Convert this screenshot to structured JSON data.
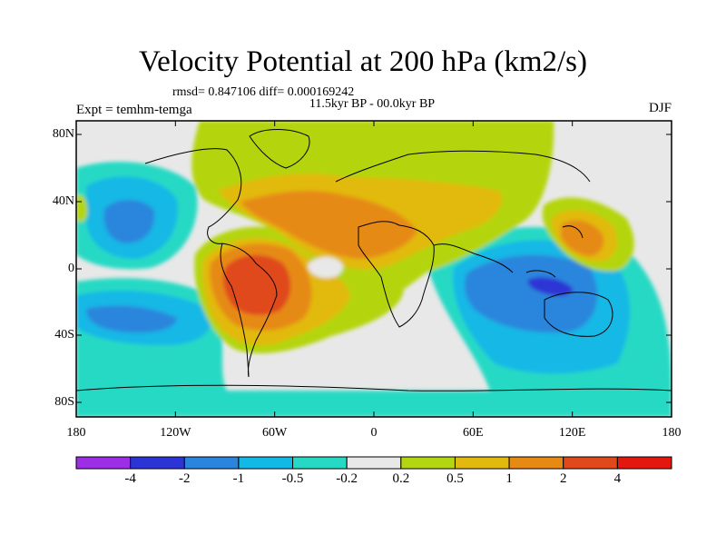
{
  "title": "Velocity Potential at 200 hPa (km2/s)",
  "stats": "rmsd= 0.847106 diff= 0.000169242",
  "period": "11.5kyr BP - 00.0kyr BP",
  "experiment": "Expt = temhm-temga",
  "season": "DJF",
  "lat_labels": [
    "80N",
    "40N",
    "0",
    "40S",
    "80S"
  ],
  "lon_labels": [
    "180",
    "120W",
    "60W",
    "0",
    "60E",
    "120E",
    "180"
  ],
  "colorbar": {
    "labels": [
      "-4",
      "-2",
      "-1",
      "-0.5",
      "-0.2",
      "0.2",
      "0.5",
      "1",
      "2",
      "4"
    ],
    "colors": [
      "#9c2ee6",
      "#2d34d6",
      "#2a86dc",
      "#12b8e6",
      "#27d9c4",
      "#e8e8e8",
      "#b4d511",
      "#e2b90e",
      "#e68a14",
      "#e0491a",
      "#e3170d"
    ]
  }
}
